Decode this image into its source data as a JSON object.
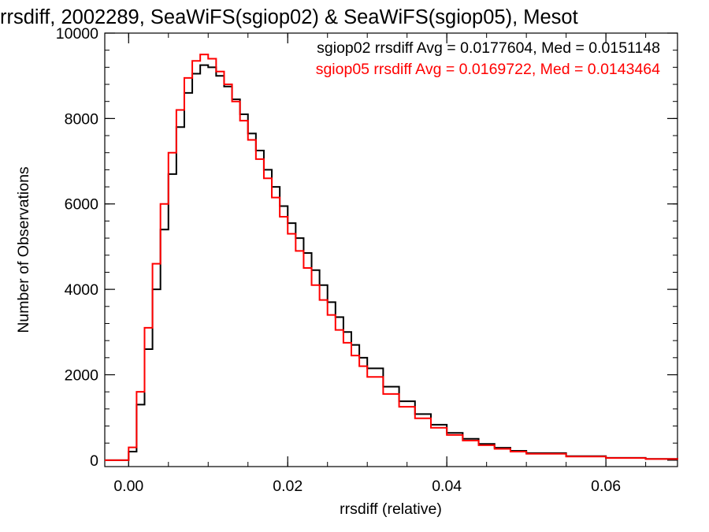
{
  "chart_data": {
    "type": "line",
    "title": "rrsdiff, 2002289, SeaWiFS(sgiop02) & SeaWiFS(sgiop05), Mesot",
    "xlabel": "rrsdiff (relative)",
    "ylabel": "Number of Observations",
    "xlim": [
      -0.003,
      0.069
    ],
    "ylim": [
      -150,
      10000
    ],
    "xticks": [
      0.0,
      0.02,
      0.04,
      0.06
    ],
    "xtick_labels": [
      "0.00",
      "0.02",
      "0.04",
      "0.06"
    ],
    "yticks": [
      0,
      2000,
      4000,
      6000,
      8000,
      10000
    ],
    "ytick_labels": [
      "0",
      "2000",
      "4000",
      "6000",
      "8000",
      "10000"
    ],
    "grid": false,
    "legend_position": "top-right",
    "annotations": [
      {
        "text": "sgiop02 rrsdiff Avg = 0.0177604, Med = 0.0151148",
        "color": "#000000"
      },
      {
        "text": "sgiop05 rrsdiff Avg = 0.0169722, Med = 0.0143464",
        "color": "#ff0000"
      }
    ],
    "series": [
      {
        "color": "#000000",
        "style": "step",
        "x": [
          -0.003,
          -0.0001,
          0.0,
          0.001,
          0.002,
          0.003,
          0.004,
          0.005,
          0.006,
          0.007,
          0.008,
          0.009,
          0.01,
          0.011,
          0.012,
          0.013,
          0.014,
          0.015,
          0.016,
          0.017,
          0.018,
          0.019,
          0.02,
          0.021,
          0.022,
          0.023,
          0.024,
          0.025,
          0.026,
          0.027,
          0.028,
          0.029,
          0.03,
          0.032,
          0.034,
          0.036,
          0.038,
          0.04,
          0.042,
          0.044,
          0.046,
          0.048,
          0.05,
          0.055,
          0.06,
          0.065,
          0.069
        ],
        "y": [
          0,
          0,
          200,
          1300,
          2600,
          4000,
          5400,
          6700,
          7800,
          8600,
          9050,
          9250,
          9200,
          9000,
          8750,
          8450,
          8100,
          7650,
          7250,
          6800,
          6400,
          5950,
          5550,
          5200,
          4850,
          4450,
          4100,
          3700,
          3350,
          3000,
          2700,
          2400,
          2150,
          1720,
          1380,
          1080,
          830,
          640,
          500,
          380,
          290,
          220,
          165,
          95,
          55,
          30,
          15
        ]
      },
      {
        "color": "#ff0000",
        "style": "step",
        "x": [
          -0.003,
          -0.0001,
          0.0,
          0.001,
          0.002,
          0.003,
          0.004,
          0.005,
          0.006,
          0.007,
          0.008,
          0.009,
          0.01,
          0.011,
          0.012,
          0.013,
          0.014,
          0.015,
          0.016,
          0.017,
          0.018,
          0.019,
          0.02,
          0.021,
          0.022,
          0.023,
          0.024,
          0.025,
          0.026,
          0.027,
          0.028,
          0.029,
          0.03,
          0.032,
          0.034,
          0.036,
          0.038,
          0.04,
          0.042,
          0.044,
          0.046,
          0.048,
          0.05,
          0.055,
          0.06,
          0.065,
          0.069
        ],
        "y": [
          0,
          0,
          300,
          1600,
          3100,
          4600,
          6000,
          7200,
          8200,
          8950,
          9350,
          9500,
          9400,
          9100,
          8800,
          8400,
          7950,
          7500,
          7050,
          6600,
          6150,
          5700,
          5300,
          4900,
          4500,
          4100,
          3750,
          3400,
          3050,
          2750,
          2450,
          2200,
          1950,
          1550,
          1250,
          980,
          760,
          590,
          460,
          350,
          265,
          200,
          150,
          85,
          50,
          27,
          14
        ]
      }
    ]
  }
}
